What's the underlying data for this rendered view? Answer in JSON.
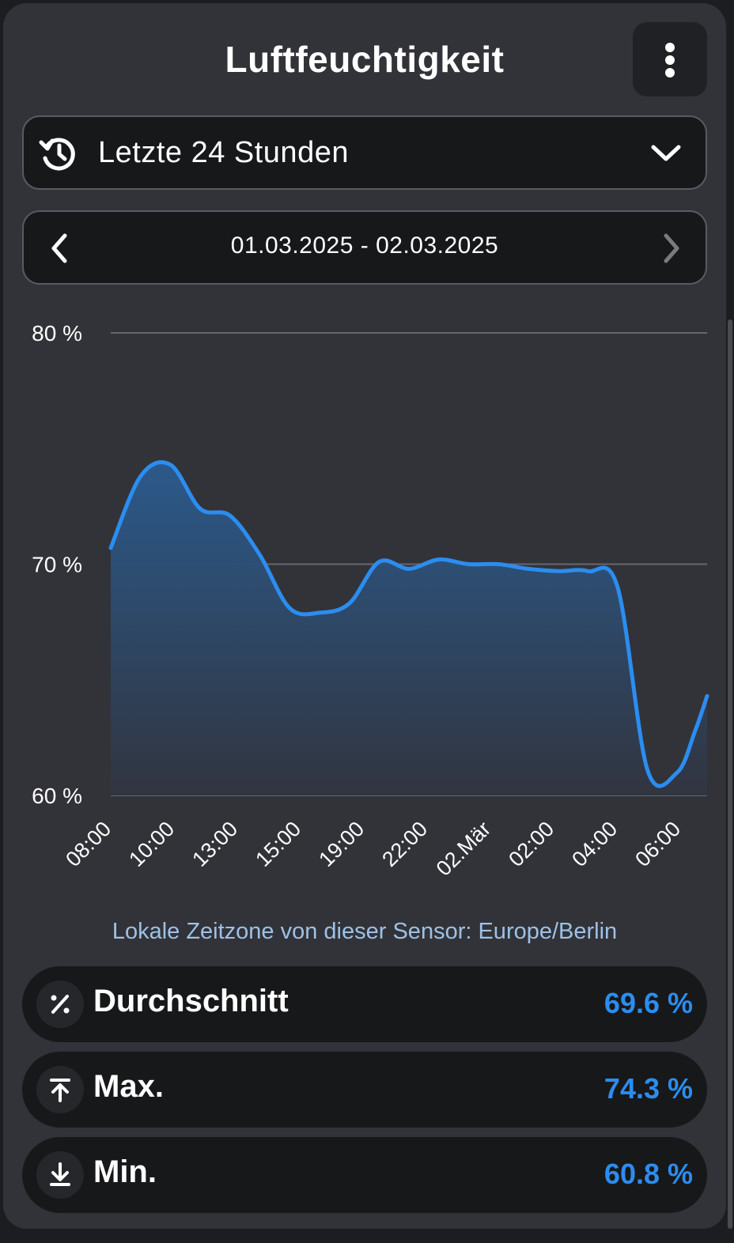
{
  "header": {
    "title": "Luftfeuchtigkeit",
    "menu_icon": "more-vertical-icon"
  },
  "period_select": {
    "icon": "history-icon",
    "label": "Letzte 24 Stunden",
    "toggle_icon": "chevron-down-icon"
  },
  "date_range": {
    "prev_icon": "chevron-left-icon",
    "text": "01.03.2025 - 02.03.2025",
    "next_icon": "chevron-right-icon"
  },
  "chart_data": {
    "type": "area",
    "y_tick_labels": [
      "80 %",
      "70 %",
      "60 %"
    ],
    "y_ticks": [
      80,
      70,
      60
    ],
    "ylim": [
      60,
      80
    ],
    "x_tick_labels": [
      "08:00",
      "10:00",
      "13:00",
      "15:00",
      "19:00",
      "22:00",
      "02.Mär",
      "02:00",
      "04:00",
      "06:00"
    ],
    "x": [
      0,
      0.5,
      1,
      1.5,
      2,
      2.5,
      3,
      3.5,
      4,
      4.5,
      5,
      5.5,
      6,
      6.5,
      7,
      7.5,
      8,
      8.5,
      9,
      9.5,
      9.8,
      10
    ],
    "values": [
      70.7,
      73.8,
      74.3,
      72.4,
      72.1,
      70.4,
      68.1,
      67.9,
      68.3,
      70.1,
      69.8,
      70.2,
      70.0,
      70.0,
      69.8,
      69.7,
      69.7,
      69.0,
      61.1,
      61.0,
      62.8,
      64.3
    ],
    "grid": true,
    "colors": {
      "line": "#2b8df0",
      "fill_top": "#2b5b8f",
      "fill_bottom": "#313540",
      "grid": "#66676c"
    }
  },
  "timezone_note": "Lokale Zeitzone von dieser Sensor: Europe/Berlin",
  "stats": [
    {
      "icon": "percent-icon",
      "label": "Durchschnitt",
      "value": "69.6 %"
    },
    {
      "icon": "arrow-to-top-icon",
      "label": "Max.",
      "value": "74.3 %"
    },
    {
      "icon": "arrow-to-bottom-icon",
      "label": "Min.",
      "value": "60.8 %"
    }
  ],
  "accent_color": "#2b8df0"
}
